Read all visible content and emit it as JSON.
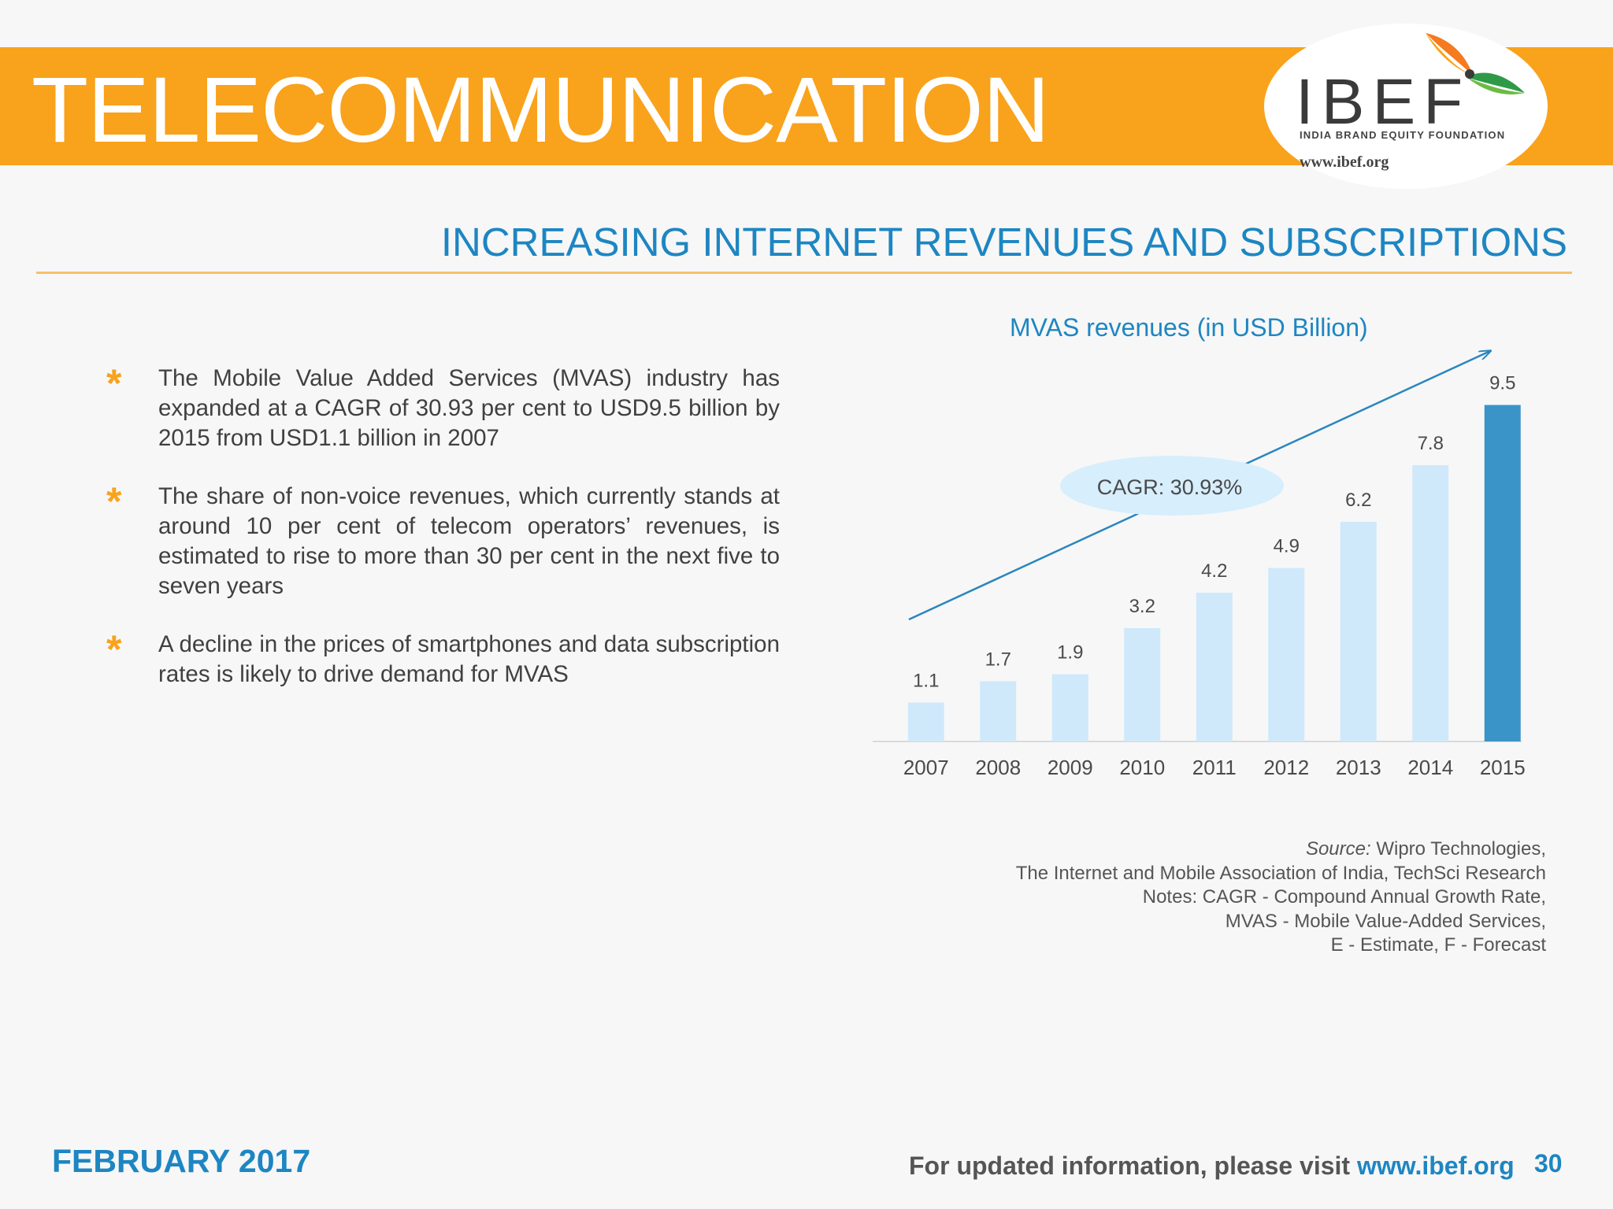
{
  "header": {
    "title": "TELECOMMUNICATION",
    "logo_text": "IBEF",
    "logo_subtitle": "INDIA BRAND EQUITY FOUNDATION",
    "logo_url": "www.ibef.org"
  },
  "section_title": "INCREASING INTERNET REVENUES AND SUBSCRIPTIONS",
  "bullets": [
    {
      "mark": "*",
      "text": "The Mobile Value Added Services (MVAS) industry has expanded at a CAGR of 30.93 per cent to USD9.5 billion by 2015 from USD1.1 billion in 2007"
    },
    {
      "mark": "*",
      "text": "The share of non-voice revenues, which currently stands at around 10 per cent of telecom operators’ revenues, is estimated to rise to more than 30 per cent in the next five to seven years"
    },
    {
      "mark": "*",
      "text": "A decline in the prices of smartphones and data subscription rates is likely to drive demand for MVAS"
    }
  ],
  "chart_data": {
    "type": "bar",
    "title": "MVAS revenues (in USD Billion)",
    "categories": [
      "2007",
      "2008",
      "2009",
      "2010",
      "2011",
      "2012",
      "2013",
      "2014",
      "2015"
    ],
    "values": [
      1.1,
      1.7,
      1.9,
      3.2,
      4.2,
      4.9,
      6.2,
      7.8,
      9.5
    ],
    "ylim": [
      0,
      10
    ],
    "grid": false,
    "data_labels": true,
    "annotation": "CAGR: 30.93%",
    "colors": {
      "bar": "#cfe9fb",
      "highlight": "#3b94c8",
      "arrow": "#2a86bf",
      "oval": "#d7eefc"
    }
  },
  "source": {
    "label": "Source:",
    "line1": "Wipro Technologies,",
    "line2": "The Internet and Mobile Association of India, TechSci Research",
    "line3": "Notes: CAGR - Compound Annual Growth Rate,",
    "line4": "MVAS - Mobile Value-Added Services,",
    "line5": "E - Estimate, F - Forecast"
  },
  "footer": {
    "date": "FEBRUARY 2017",
    "visit_text": "For updated information, please visit",
    "link": "www.ibef.org",
    "page": "30"
  }
}
